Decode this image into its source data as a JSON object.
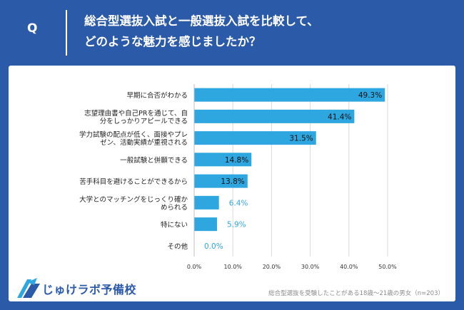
{
  "question": {
    "letter": "Q",
    "line1": "総合型選抜入試と一般選抜入試を比較して、",
    "line2": "どのような魅力を感じましたか？"
  },
  "brand": {
    "name": "じゅけラボ予備校"
  },
  "footnote": "総合型選抜を受験したことがある18歳～21歳の男女（n=203）",
  "colors": {
    "header_bg": "#2B5AA8",
    "bar": "#2EA7E0",
    "label_outside": "#2EA7E0",
    "grid": "#d9d9d9"
  },
  "chart_data": {
    "type": "bar",
    "orientation": "horizontal",
    "categories": [
      [
        "早期に合否がわかる"
      ],
      [
        "志望理由書や自己PRを通じて、自",
        "分をしっかりアピールできる"
      ],
      [
        "学力試験の配点が低く、面接やプレ",
        "ゼン、活動実績が重視される"
      ],
      [
        "一般試験と併願できる"
      ],
      [
        "苦手科目を避けることができるから"
      ],
      [
        "大学とのマッチングをじっくり確か",
        "められる"
      ],
      [
        "特にない"
      ],
      [
        "その他"
      ]
    ],
    "values": [
      49.3,
      41.4,
      31.5,
      14.8,
      13.8,
      6.4,
      5.9,
      0.0
    ],
    "value_labels": [
      "49.3%",
      "41.4%",
      "31.5%",
      "14.8%",
      "13.8%",
      "6.4%",
      "5.9%",
      "0.0%"
    ],
    "xlim": [
      0,
      50
    ],
    "xticks": [
      "0.0%",
      "10.0%",
      "20.0%",
      "30.0%",
      "40.0%",
      "50.0%"
    ],
    "grid": true
  }
}
